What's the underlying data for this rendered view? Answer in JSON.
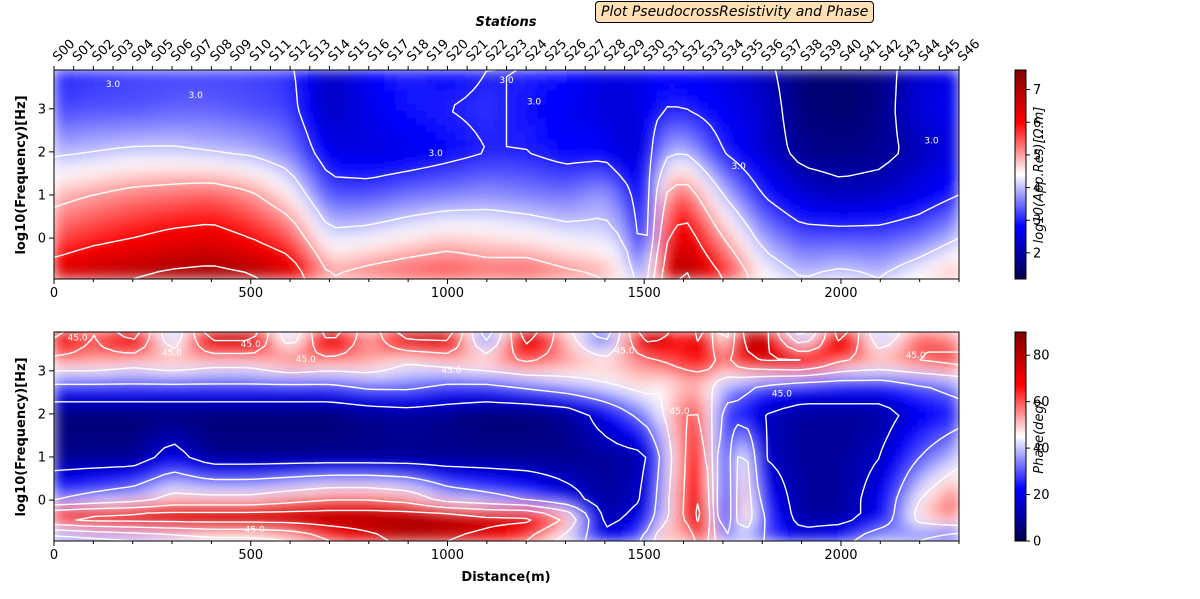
{
  "title": "Plot PseudocrossResistivity and Phase",
  "chart_data": [
    {
      "type": "heatmap",
      "name": "resistivity",
      "top_xlabel": "Stations",
      "ylabel": "log10(Frequency)[Hz]",
      "xlim": [
        0,
        2300
      ],
      "ylim": [
        -0.95,
        3.9
      ],
      "x_ticks": [
        0,
        500,
        1000,
        1500,
        2000
      ],
      "y_ticks": [
        0,
        1,
        2,
        3
      ],
      "stations": [
        "S00",
        "S01",
        "S02",
        "S03",
        "S04",
        "S05",
        "S06",
        "S07",
        "S08",
        "S09",
        "S10",
        "S11",
        "S12",
        "S13",
        "S14",
        "S15",
        "S16",
        "S17",
        "S18",
        "S19",
        "S20",
        "S21",
        "S22",
        "S23",
        "S24",
        "S25",
        "S26",
        "S27",
        "S28",
        "S29",
        "S30",
        "S31",
        "S32",
        "S33",
        "S34",
        "S35",
        "S36",
        "S37",
        "S38",
        "S39",
        "S40",
        "S41",
        "S42",
        "S43",
        "S44",
        "S45",
        "S46"
      ],
      "contour_label": "3.0",
      "colorbar": {
        "label": "log10(App.Res)[Ω.m]",
        "range": [
          1.2,
          7.6
        ],
        "ticks": [
          2,
          3,
          4,
          5,
          6,
          7
        ],
        "colormap": "seismic"
      },
      "x": [
        0,
        100,
        200,
        300,
        400,
        500,
        600,
        700,
        800,
        900,
        1000,
        1100,
        1200,
        1300,
        1400,
        1450,
        1500,
        1550,
        1600,
        1700,
        1800,
        1900,
        2000,
        2100,
        2200,
        2300
      ],
      "y": [
        -0.9,
        0,
        1,
        2,
        3,
        3.9
      ],
      "values": [
        [
          6.5,
          6.8,
          7.0,
          7.2,
          7.3,
          7.1,
          6.6,
          5.0,
          5.3,
          5.5,
          5.6,
          5.4,
          5.5,
          5.2,
          5.0,
          4.5,
          3.5,
          6.5,
          7.2,
          6.0,
          4.5,
          4.0,
          4.2,
          4.0,
          4.5,
          5.0
        ],
        [
          5.5,
          5.8,
          6.0,
          6.2,
          6.3,
          6.0,
          5.5,
          4.2,
          4.3,
          4.5,
          4.7,
          4.6,
          4.5,
          4.3,
          4.2,
          4.0,
          2.5,
          5.8,
          6.5,
          5.0,
          3.8,
          3.3,
          3.3,
          3.3,
          3.5,
          4.0
        ],
        [
          4.8,
          5.0,
          5.2,
          5.3,
          5.4,
          5.1,
          4.5,
          3.3,
          3.3,
          3.5,
          3.6,
          3.7,
          3.6,
          3.5,
          3.8,
          3.3,
          2.4,
          5.0,
          5.5,
          4.0,
          3.0,
          2.4,
          2.2,
          2.3,
          2.6,
          3.0
        ],
        [
          3.9,
          4.0,
          4.1,
          4.1,
          4.0,
          3.9,
          3.6,
          2.6,
          2.5,
          2.6,
          2.8,
          3.0,
          3.0,
          2.8,
          2.8,
          2.4,
          2.5,
          3.8,
          4.0,
          3.0,
          2.4,
          1.8,
          1.7,
          1.8,
          2.2,
          2.6
        ],
        [
          3.2,
          3.3,
          3.3,
          3.4,
          3.4,
          3.3,
          3.2,
          2.2,
          2.6,
          2.9,
          3.0,
          3.1,
          2.9,
          2.7,
          2.5,
          2.4,
          2.6,
          3.0,
          3.0,
          2.7,
          2.4,
          1.6,
          1.5,
          1.7,
          2.5,
          2.7
        ],
        [
          3.0,
          3.1,
          3.2,
          3.2,
          3.2,
          3.2,
          3.1,
          2.2,
          2.8,
          3.0,
          2.8,
          3.0,
          3.0,
          2.9,
          2.5,
          2.6,
          2.6,
          2.8,
          2.7,
          2.6,
          2.2,
          1.6,
          1.5,
          1.7,
          2.4,
          2.6
        ]
      ]
    },
    {
      "type": "heatmap",
      "name": "phase",
      "xlabel": "Distance(m)",
      "ylabel": "log10(Frequency)[Hz]",
      "xlim": [
        0,
        2300
      ],
      "ylim": [
        -0.95,
        3.9
      ],
      "x_ticks": [
        0,
        500,
        1000,
        1500,
        2000
      ],
      "y_ticks": [
        0,
        1,
        2,
        3
      ],
      "contour_label": "45.0",
      "colorbar": {
        "label": "Phase(deg)",
        "range": [
          0,
          90
        ],
        "ticks": [
          0,
          20,
          40,
          60,
          80
        ],
        "colormap": "seismic"
      },
      "x": [
        0,
        100,
        200,
        300,
        400,
        500,
        600,
        700,
        800,
        900,
        1000,
        1100,
        1200,
        1300,
        1400,
        1500,
        1550,
        1600,
        1650,
        1700,
        1750,
        1800,
        1900,
        2000,
        2100,
        2200,
        2300
      ],
      "y": [
        -0.9,
        -0.4,
        0,
        1,
        2,
        2.7,
        3.2,
        3.9
      ],
      "values": [
        [
          20,
          25,
          30,
          35,
          40,
          40,
          45,
          60,
          70,
          80,
          75,
          70,
          60,
          40,
          20,
          30,
          60,
          45,
          70,
          30,
          40,
          30,
          20,
          25,
          40,
          30,
          20
        ],
        [
          80,
          85,
          85,
          85,
          85,
          85,
          85,
          85,
          85,
          85,
          85,
          80,
          80,
          60,
          10,
          20,
          40,
          60,
          85,
          10,
          60,
          30,
          10,
          10,
          20,
          50,
          60
        ],
        [
          30,
          35,
          40,
          50,
          50,
          50,
          55,
          60,
          60,
          55,
          40,
          35,
          30,
          20,
          10,
          15,
          40,
          60,
          80,
          10,
          60,
          25,
          10,
          10,
          20,
          45,
          60
        ],
        [
          8,
          8,
          8,
          20,
          8,
          8,
          8,
          8,
          8,
          8,
          8,
          8,
          8,
          8,
          10,
          12,
          35,
          60,
          70,
          15,
          55,
          15,
          10,
          10,
          15,
          30,
          40
        ],
        [
          5,
          5,
          5,
          5,
          5,
          5,
          5,
          5,
          8,
          10,
          8,
          5,
          5,
          8,
          20,
          35,
          45,
          60,
          60,
          25,
          25,
          15,
          10,
          10,
          10,
          20,
          25
        ],
        [
          30,
          30,
          30,
          30,
          30,
          30,
          30,
          30,
          35,
          35,
          30,
          30,
          35,
          40,
          45,
          50,
          45,
          50,
          50,
          40,
          35,
          30,
          25,
          25,
          25,
          30,
          35
        ],
        [
          55,
          55,
          50,
          55,
          50,
          50,
          60,
          55,
          55,
          45,
          50,
          55,
          60,
          55,
          50,
          55,
          60,
          65,
          70,
          55,
          70,
          75,
          80,
          60,
          55,
          60,
          65
        ],
        [
          80,
          60,
          85,
          30,
          85,
          85,
          30,
          85,
          50,
          85,
          85,
          20,
          85,
          50,
          20,
          85,
          80,
          60,
          85,
          30,
          80,
          85,
          20,
          85,
          30,
          60,
          50
        ]
      ]
    }
  ]
}
